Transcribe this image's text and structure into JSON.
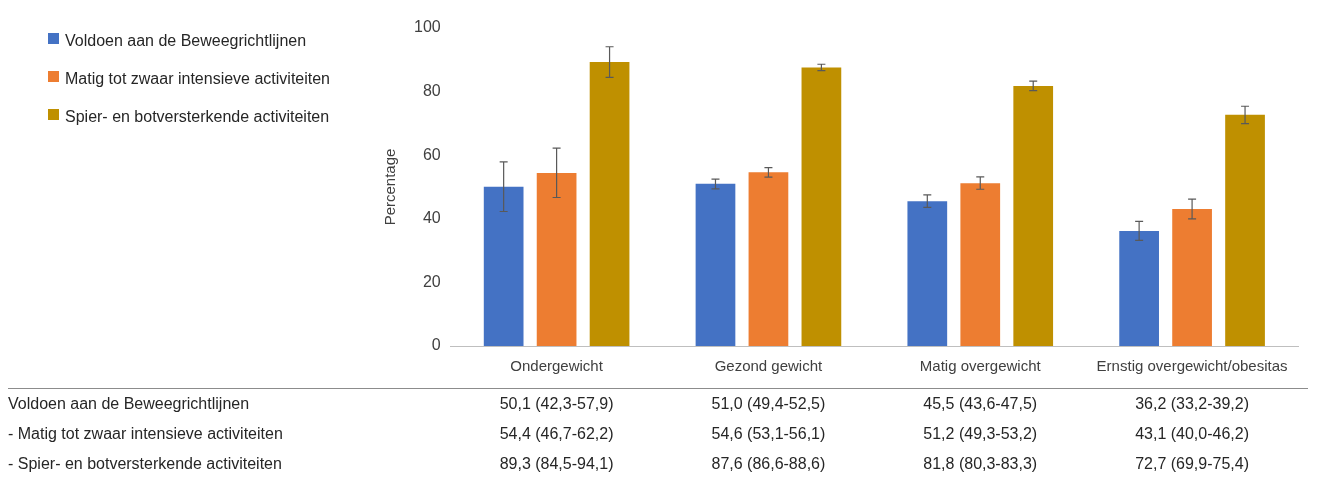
{
  "chart_data": {
    "type": "bar",
    "ylabel": "Percentage",
    "categories": [
      "Ondergewicht",
      "Gezond gewicht",
      "Matig overgewicht",
      "Ernstig overgewicht/obesitas"
    ],
    "ylim": [
      0,
      100
    ],
    "yticks": [
      0,
      20,
      40,
      60,
      80,
      100
    ],
    "grid": false,
    "legend": "left",
    "series": [
      {
        "name": "Voldoen aan de Beweegrichtlijnen",
        "color": "#4472c4",
        "values": [
          50.1,
          51.0,
          45.5,
          36.2
        ],
        "errors": [
          [
            42.3,
            57.9
          ],
          [
            49.4,
            52.5
          ],
          [
            43.6,
            47.5
          ],
          [
            33.2,
            39.2
          ]
        ],
        "value_labels": [
          "50,1 (42,3-57,9)",
          "51,0 (49,4-52,5)",
          "45,5 (43,6-47,5)",
          "36,2 (33,2-39,2)"
        ]
      },
      {
        "name": "Matig tot zwaar intensieve activiteiten",
        "color": "#ed7d31",
        "values": [
          54.4,
          54.6,
          51.2,
          43.1
        ],
        "errors": [
          [
            46.7,
            62.2
          ],
          [
            53.1,
            56.1
          ],
          [
            49.3,
            53.2
          ],
          [
            40.0,
            46.2
          ]
        ],
        "value_labels": [
          "54,4 (46,7-62,2)",
          "54,6 (53,1-56,1)",
          "51,2 (49,3-53,2)",
          "43,1 (40,0-46,2)"
        ]
      },
      {
        "name": "Spier- en botversterkende activiteiten",
        "color": "#bf9000",
        "values": [
          89.3,
          87.6,
          81.8,
          72.7
        ],
        "errors": [
          [
            84.5,
            94.1
          ],
          [
            86.6,
            88.6
          ],
          [
            80.3,
            83.3
          ],
          [
            69.9,
            75.4
          ]
        ],
        "value_labels": [
          "89,3 (84,5-94,1)",
          "87,6 (86,6-88,6)",
          "81,8 (80,3-83,3)",
          "72,7 (69,9-75,4)"
        ]
      }
    ],
    "annotations": [
      "Voldoen aan de Beweegrichtlijnen",
      "- Matig tot zwaar intensieve activiteiten",
      "- Spier- en botversterkende activiteiten"
    ]
  }
}
